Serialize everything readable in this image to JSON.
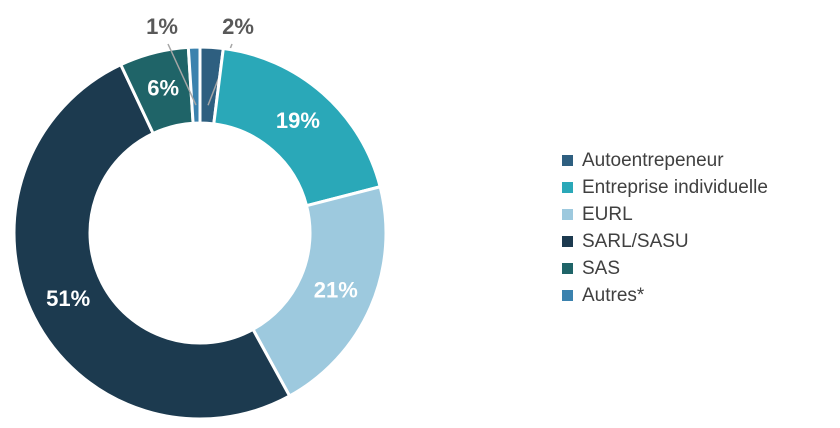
{
  "chart_data": {
    "type": "pie",
    "donut": true,
    "categories": [
      "Autoentrepeneur",
      "Entreprise individuelle",
      "EURL",
      "SARL/SASU",
      "SAS",
      "Autres*"
    ],
    "values": [
      2,
      19,
      21,
      51,
      6,
      1
    ],
    "value_labels": [
      "2%",
      "19%",
      "21%",
      "51%",
      "6%",
      "1%"
    ],
    "colors": [
      "#2e5f80",
      "#2aa8b8",
      "#9dc9de",
      "#1c3a4f",
      "#1f6468",
      "#3b82ae"
    ],
    "legend": "right"
  }
}
